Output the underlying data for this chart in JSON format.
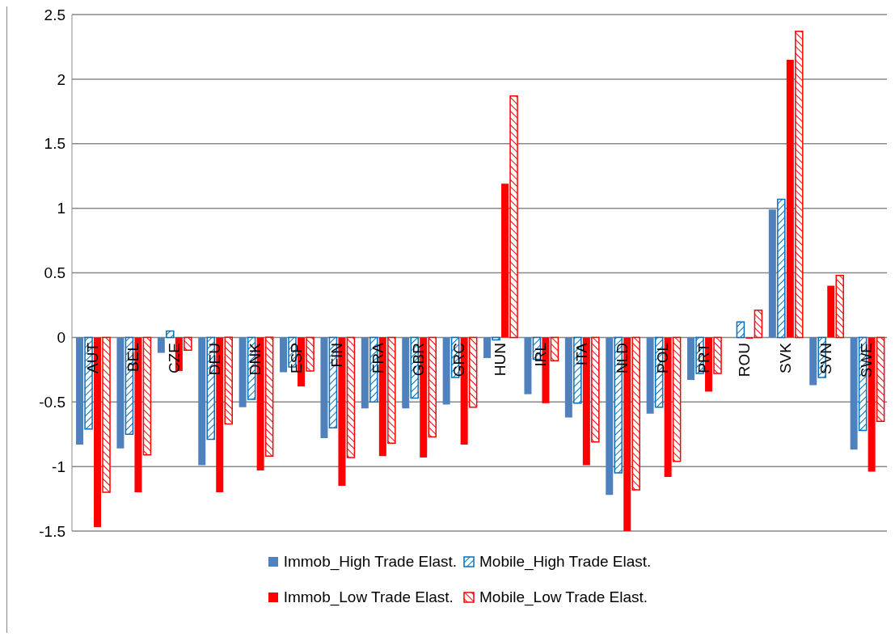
{
  "chart_data": {
    "type": "bar",
    "categories": [
      "AUT",
      "BEL",
      "CZE",
      "DEU",
      "DNK",
      "ESP",
      "FIN",
      "FRA",
      "GBR",
      "GRC",
      "HUN",
      "IRL",
      "ITA",
      "NLD",
      "POL",
      "PRT",
      "ROU",
      "SVK",
      "SVN",
      "SWE"
    ],
    "series": [
      {
        "name": "Immob_High Trade Elast.",
        "color": "#4f81bd",
        "values": [
          -0.83,
          -0.86,
          -0.12,
          -0.99,
          -0.54,
          -0.27,
          -0.78,
          -0.55,
          -0.55,
          -0.52,
          -0.16,
          -0.44,
          -0.62,
          -1.22,
          -0.59,
          -0.33,
          0,
          0.99,
          -0.37,
          -0.87
        ]
      },
      {
        "name": "Mobile_High Trade Elast.",
        "color": "#0070c0",
        "values": [
          -0.71,
          -0.75,
          0.05,
          -0.79,
          -0.48,
          -0.23,
          -0.7,
          -0.5,
          -0.47,
          -0.31,
          -0.02,
          -0.17,
          -0.51,
          -1.05,
          -0.54,
          -0.28,
          0.12,
          1.07,
          -0.31,
          -0.72
        ]
      },
      {
        "name": "Immob_Low Trade Elast.",
        "color": "#ff0000",
        "values": [
          -1.47,
          -1.2,
          -0.26,
          -1.2,
          -1.03,
          -0.38,
          -1.15,
          -0.92,
          -0.93,
          -0.83,
          1.19,
          -0.51,
          -0.99,
          -1.5,
          -1.08,
          -0.42,
          -0.01,
          2.15,
          0.4,
          -1.04
        ]
      },
      {
        "name": "Mobile_Low Trade Elast.",
        "color": "#ff0000",
        "values": [
          -1.2,
          -0.91,
          -0.1,
          -0.67,
          -0.92,
          -0.26,
          -0.93,
          -0.82,
          -0.77,
          -0.54,
          1.87,
          -0.18,
          -0.81,
          -1.18,
          -0.96,
          -0.28,
          0.21,
          2.37,
          0.48,
          -0.65
        ]
      }
    ],
    "ylim": [
      -1.5,
      2.5
    ],
    "yticks": [
      -1.5,
      -1,
      -0.5,
      0,
      0.5,
      1,
      1.5,
      2,
      2.5
    ],
    "grid": "y",
    "legend": "bottom"
  }
}
